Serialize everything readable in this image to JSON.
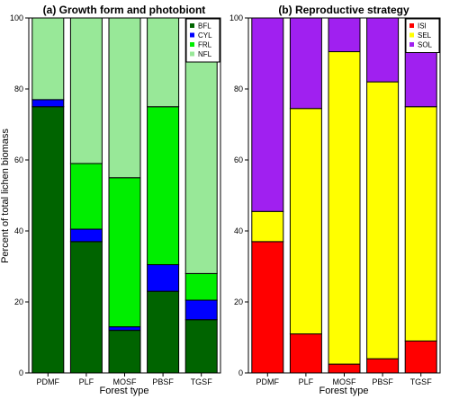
{
  "chart_data": [
    {
      "type": "bar",
      "stacked": true,
      "title": "(a) Growth form and photobiont",
      "xlabel": "Forest type",
      "ylabel": "Percent of total lichen biomass",
      "ylim": [
        0,
        100
      ],
      "yticks": [
        "0",
        "20",
        "40",
        "60",
        "80",
        "100"
      ],
      "categories": [
        "PDMF",
        "PLF",
        "MOSF",
        "PBSF",
        "TGSF"
      ],
      "legend_position": "top-right",
      "series": [
        {
          "name": "BFL",
          "color": "#006400",
          "values": [
            75,
            37,
            12,
            23,
            15
          ]
        },
        {
          "name": "CYL",
          "color": "#0000ff",
          "values": [
            2,
            3.5,
            1,
            7.5,
            5.5
          ]
        },
        {
          "name": "FRL",
          "color": "#00ee00",
          "values": [
            0,
            18.5,
            42,
            44.5,
            7.5
          ]
        },
        {
          "name": "NFL",
          "color": "#98e898",
          "values": [
            23,
            41,
            45,
            25,
            72
          ]
        }
      ]
    },
    {
      "type": "bar",
      "stacked": true,
      "title": "(b) Reproductive strategy",
      "xlabel": "Forest type",
      "ylim": [
        0,
        100
      ],
      "yticks": [
        "0",
        "20",
        "40",
        "60",
        "80",
        "100"
      ],
      "categories": [
        "PDMF",
        "PLF",
        "MOSF",
        "PBSF",
        "TGSF"
      ],
      "legend_position": "top-right",
      "series": [
        {
          "name": "ISI",
          "color": "#ff0000",
          "values": [
            37,
            11,
            2.5,
            4,
            9
          ]
        },
        {
          "name": "SEL",
          "color": "#ffff00",
          "values": [
            8.5,
            63.5,
            88,
            78,
            66
          ]
        },
        {
          "name": "SOL",
          "color": "#a020f0",
          "values": [
            54.5,
            25.5,
            9.5,
            18,
            25
          ]
        }
      ]
    }
  ]
}
